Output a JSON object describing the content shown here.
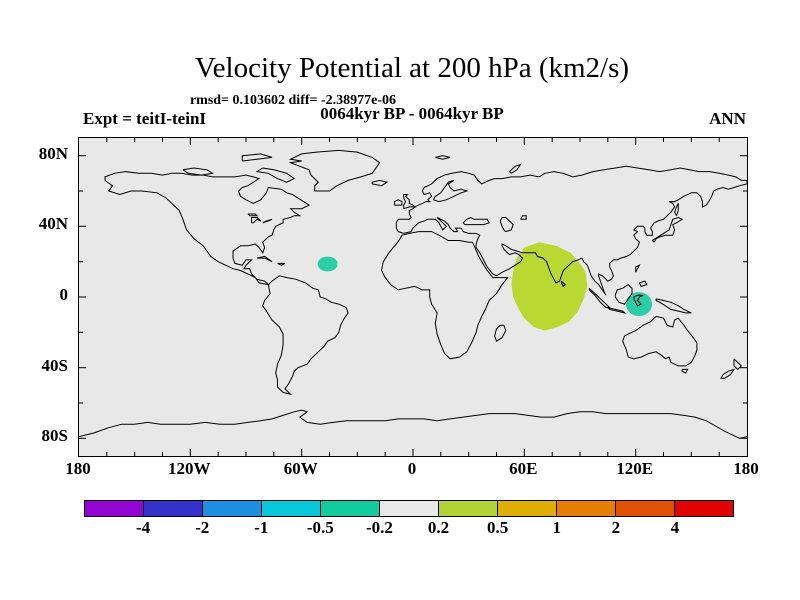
{
  "title": "Velocity Potential at 200 hPa (km2/s)",
  "header": {
    "stats_line": "rmsd= 0.103602 diff= -2.38977e-06",
    "period_line": "0064kyr BP - 0064kyr BP",
    "experiment_label": "Expt = teitI-teinI",
    "season_label": "ANN"
  },
  "chart_data": {
    "type": "heatmap",
    "subtype": "filled-contour world map",
    "projection": "equirectangular, lat 90N to 90S, lon 180W to 180E",
    "title": "Velocity Potential at 200 hPa (km2/s)",
    "stats": {
      "rmsd": 0.103602,
      "diff": -2.38977e-06
    },
    "experiment": "teitI-teinI",
    "season": "ANN",
    "period": "0064kyr BP - 0064kyr BP",
    "map_background": "#e8e8e8",
    "coastline_color": "#000000",
    "x_axis": {
      "ticks": [
        {
          "deg": -180,
          "label": "180"
        },
        {
          "deg": -120,
          "label": "120W"
        },
        {
          "deg": -60,
          "label": "60W"
        },
        {
          "deg": 0,
          "label": "0"
        },
        {
          "deg": 60,
          "label": "60E"
        },
        {
          "deg": 120,
          "label": "120E"
        },
        {
          "deg": 180,
          "label": "180"
        }
      ],
      "minor_step_deg": 15,
      "major_step_deg": 60
    },
    "y_axis": {
      "ticks": [
        {
          "deg": 80,
          "label": "80N"
        },
        {
          "deg": 40,
          "label": "40N"
        },
        {
          "deg": 0,
          "label": "0"
        },
        {
          "deg": -40,
          "label": "40S"
        },
        {
          "deg": -80,
          "label": "80S"
        }
      ],
      "minor_step_deg": 20,
      "major_step_deg": 40
    },
    "colorbar": {
      "tick_labels": [
        "-4",
        "-2",
        "-1",
        "-0.5",
        "-0.2",
        "0.2",
        "0.5",
        "1",
        "2",
        "4"
      ],
      "colors": [
        "#9305d2",
        "#3333cc",
        "#1f8fe0",
        "#0ac8dc",
        "#12cc9e",
        "#e8e8e8",
        "#b2d235",
        "#deae00",
        "#e67e00",
        "#e25004",
        "#de0500"
      ]
    },
    "regions": [
      {
        "name": "tropical-atlantic-negative-anomaly",
        "bin": "-0.5 to -0.2",
        "color": "#2bcea6",
        "shape": "ellipse",
        "lon": -46,
        "lat": 18.7,
        "rx_deg": 5.4,
        "ry_deg": 4.2
      },
      {
        "name": "indian-ocean-positive-anomaly",
        "bin": "0.2 to 0.5",
        "color": "#b9d832",
        "shape": "polygon",
        "outline": [
          [
            68,
            31
          ],
          [
            77,
            29
          ],
          [
            85,
            25
          ],
          [
            90,
            19
          ],
          [
            93,
            14
          ],
          [
            94,
            6
          ],
          [
            92,
            -1
          ],
          [
            89,
            -8
          ],
          [
            84,
            -14
          ],
          [
            78,
            -17
          ],
          [
            71,
            -19
          ],
          [
            65,
            -17
          ],
          [
            60,
            -12
          ],
          [
            57,
            -7
          ],
          [
            54,
            0
          ],
          [
            53,
            7
          ],
          [
            54,
            15
          ],
          [
            56,
            22
          ],
          [
            60,
            28
          ],
          [
            68,
            31
          ]
        ]
      },
      {
        "name": "maritime-continent-negative-anomaly",
        "bin": "-0.5 to -0.2",
        "color": "#2bcea6",
        "shape": "ellipse",
        "lon": 121.8,
        "lat": -4,
        "rx_deg": 7,
        "ry_deg": 6.8
      }
    ]
  }
}
